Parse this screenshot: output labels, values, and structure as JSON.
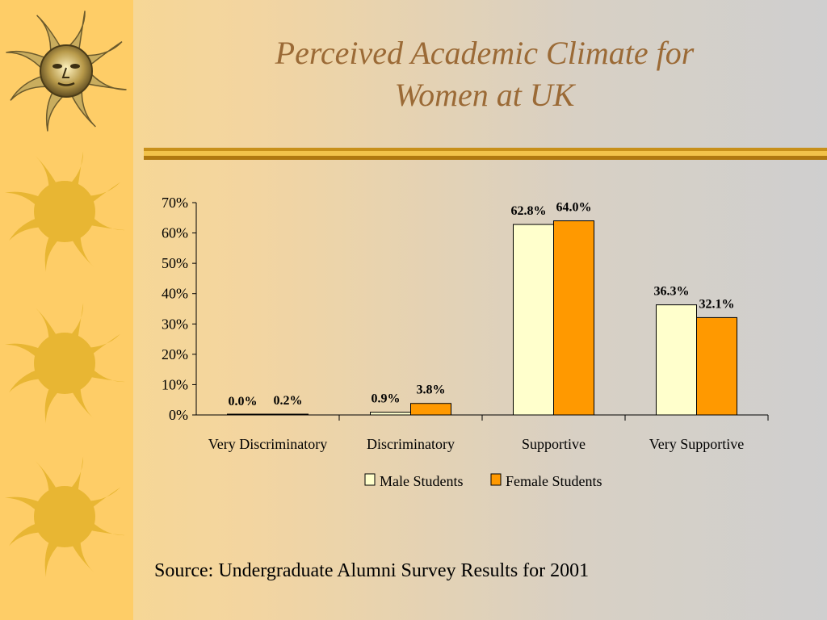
{
  "slide": {
    "title_line1": "Perceived Academic Climate for",
    "title_line2": "Women at UK",
    "source": "Source: Undergraduate Alumni Survey Results for 2001"
  },
  "colors": {
    "male": "#ffffcc",
    "female": "#ff9900",
    "title": "#9b6a36",
    "sidebar": "#fecd67",
    "rule": "#d39a1e"
  },
  "decor": {
    "sidebar_icons": [
      "sun-face-icon",
      "sun-icon",
      "sun-icon",
      "sun-icon"
    ]
  },
  "chart_data": {
    "type": "bar",
    "title": "",
    "xlabel": "",
    "ylabel": "",
    "ylim": [
      0,
      70
    ],
    "yticks": [
      "0%",
      "10%",
      "20%",
      "30%",
      "40%",
      "50%",
      "60%",
      "70%"
    ],
    "categories": [
      "Very Discriminatory",
      "Discriminatory",
      "Supportive",
      "Very Supportive"
    ],
    "series": [
      {
        "name": "Male Students",
        "values": [
          0.0,
          0.9,
          62.8,
          36.3
        ],
        "labels": [
          "0.0%",
          "0.9%",
          "62.8%",
          "36.3%"
        ]
      },
      {
        "name": "Female Students",
        "values": [
          0.2,
          3.8,
          64.0,
          32.1
        ],
        "labels": [
          "0.2%",
          "3.8%",
          "64.0%",
          "32.1%"
        ]
      }
    ],
    "legend": "bottom",
    "grid": false
  }
}
